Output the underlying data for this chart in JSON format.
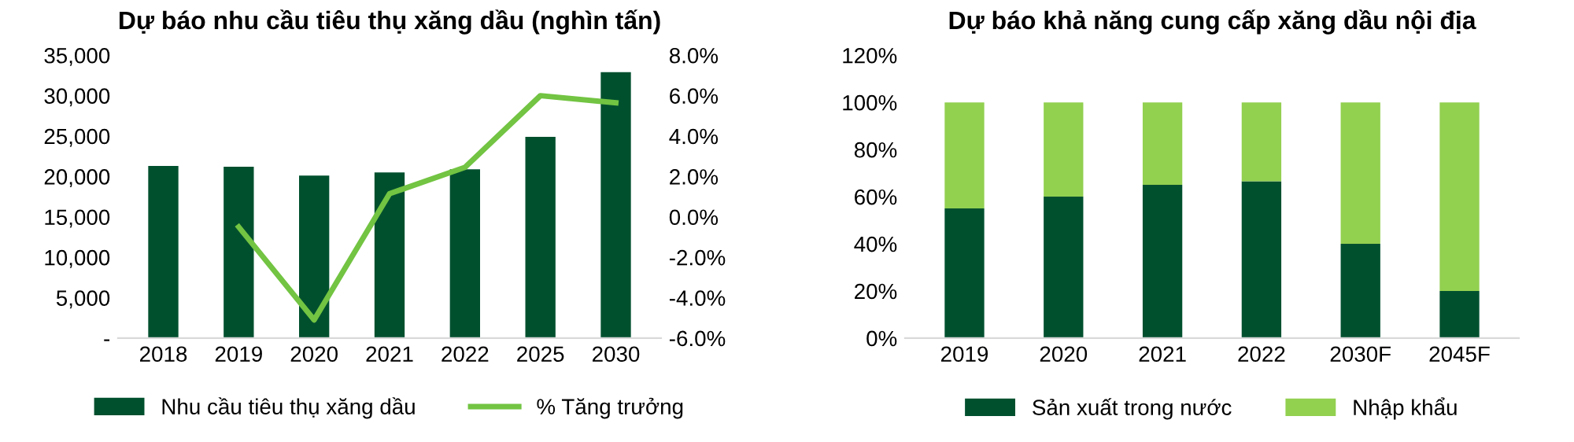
{
  "chart_data": [
    {
      "type": "bar",
      "title": "Dự báo nhu cầu tiêu thụ xăng dầu (nghìn tấn)",
      "categories": [
        "2018",
        "2019",
        "2020",
        "2021",
        "2022",
        "2025",
        "2030"
      ],
      "series": [
        {
          "name": "Nhu cầu tiêu thụ xăng dầu",
          "color": "#00502e",
          "values": [
            21300,
            21200,
            20100,
            20500,
            20900,
            24900,
            32900
          ]
        },
        {
          "name": "% Tăng trưởng",
          "type": "line",
          "axis": "y2",
          "color": "#72c442",
          "values": [
            null,
            -0.5,
            -5.1,
            1.15,
            2.45,
            6.0,
            5.65
          ]
        }
      ],
      "ylim": [
        0,
        35000
      ],
      "yticks": [
        {
          "value": 0,
          "label": "-"
        },
        {
          "value": 5000,
          "label": "5,000"
        },
        {
          "value": 10000,
          "label": "10,000"
        },
        {
          "value": 15000,
          "label": "15,000"
        },
        {
          "value": 20000,
          "label": "20,000"
        },
        {
          "value": 25000,
          "label": "25,000"
        },
        {
          "value": 30000,
          "label": "30,000"
        },
        {
          "value": 35000,
          "label": "35,000"
        }
      ],
      "y2lim": [
        -6,
        8
      ],
      "y2ticks": [
        {
          "value": -6,
          "label": "-6.0%"
        },
        {
          "value": -4,
          "label": "-4.0%"
        },
        {
          "value": -2,
          "label": "-2.0%"
        },
        {
          "value": 0,
          "label": "0.0%"
        },
        {
          "value": 2,
          "label": "2.0%"
        },
        {
          "value": 4,
          "label": "4.0%"
        },
        {
          "value": 6,
          "label": "6.0%"
        },
        {
          "value": 8,
          "label": "8.0%"
        }
      ],
      "grid": false,
      "legend": "bottom",
      "marker": "none",
      "line_style": "solid"
    },
    {
      "type": "bar",
      "stacked": true,
      "title": "Dự báo khả năng cung cấp xăng dầu nội địa",
      "categories": [
        "2019",
        "2020",
        "2021",
        "2022",
        "2030F",
        "2045F"
      ],
      "series": [
        {
          "name": "Sản xuất trong nước",
          "color": "#00502e",
          "values": [
            55,
            60,
            65,
            66.5,
            40,
            20
          ]
        },
        {
          "name": "Nhập khẩu",
          "color": "#92d050",
          "values": [
            45,
            40,
            35,
            33.5,
            60,
            80
          ]
        }
      ],
      "ylim": [
        0,
        120
      ],
      "yticks": [
        {
          "value": 0,
          "label": "0%"
        },
        {
          "value": 20,
          "label": "20%"
        },
        {
          "value": 40,
          "label": "40%"
        },
        {
          "value": 60,
          "label": "60%"
        },
        {
          "value": 80,
          "label": "80%"
        },
        {
          "value": 100,
          "label": "100%"
        },
        {
          "value": 120,
          "label": "120%"
        }
      ],
      "grid": false,
      "legend": "bottom"
    }
  ]
}
